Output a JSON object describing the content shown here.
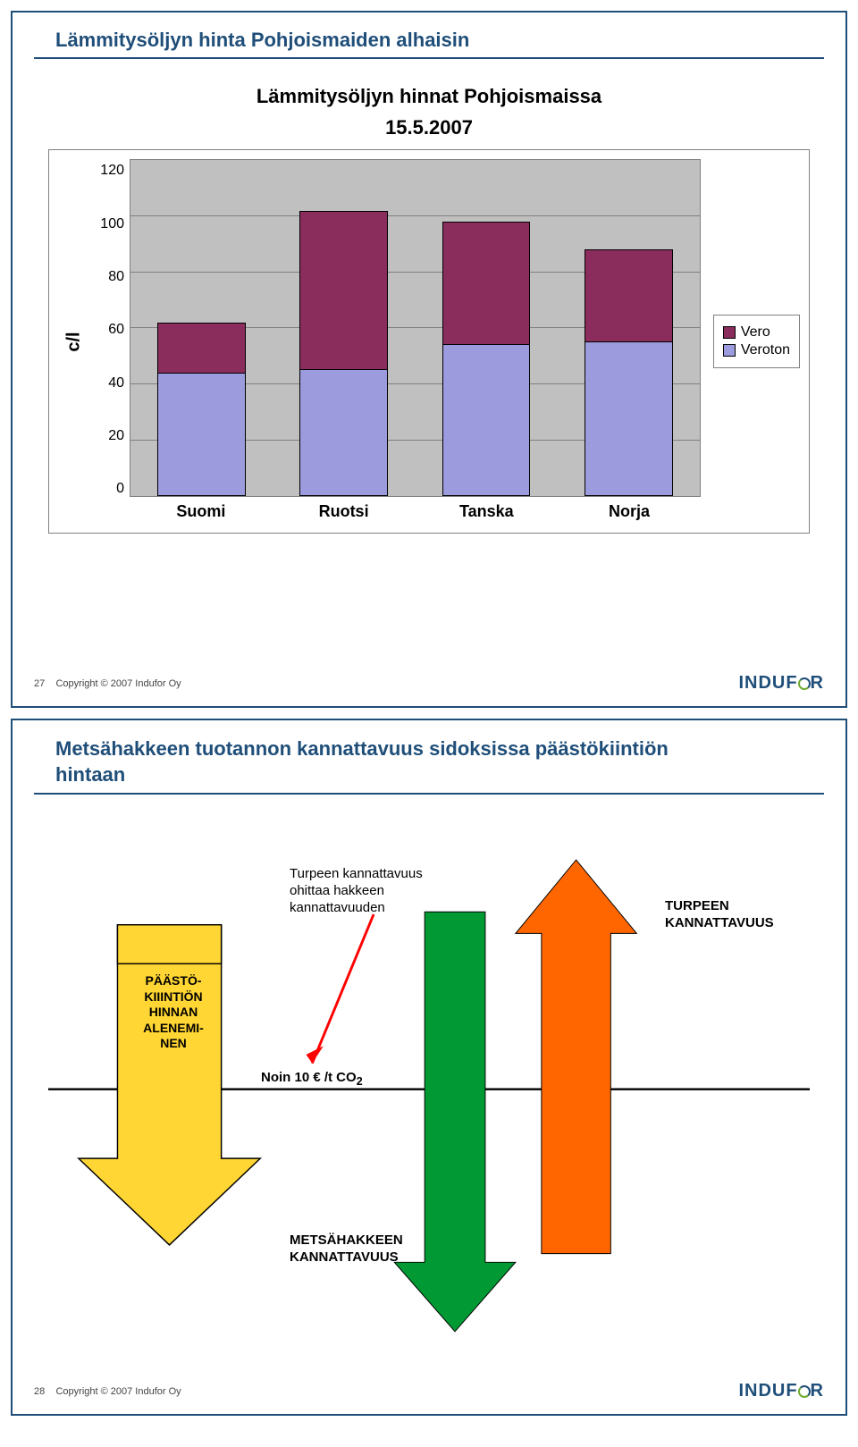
{
  "slide1": {
    "title": "Lämmitysöljyn hinta Pohjoismaiden alhaisin",
    "page_number": "27",
    "copyright": "Copyright © 2007 Indufor Oy",
    "logo_text_a": "INDUF",
    "logo_text_b": "R",
    "chart": {
      "type": "stacked-bar",
      "title_line1": "Lämmitysöljyn hinnat Pohjoismaissa",
      "title_line2": "15.5.2007",
      "ylabel": "c/l",
      "ymax": 120,
      "yticks": [
        "120",
        "100",
        "80",
        "60",
        "40",
        "20",
        "0"
      ],
      "categories": [
        "Suomi",
        "Ruotsi",
        "Tanska",
        "Norja"
      ],
      "series": [
        {
          "name": "Vero",
          "color": "#8b2d5c"
        },
        {
          "name": "Veroton",
          "color": "#9b9bdd"
        }
      ],
      "values_veroton": [
        44,
        45,
        54,
        55
      ],
      "values_vero": [
        18,
        57,
        44,
        33
      ],
      "background_color": "#c0c0c0",
      "grid_color": "#808080",
      "bar_border": "#000000"
    }
  },
  "slide2": {
    "title_line1": "Metsähakkeen tuotannon kannattavuus sidoksissa päästökiintiön",
    "title_line2": "hintaan",
    "page_number": "28",
    "copyright": "Copyright © 2007 Indufor Oy",
    "logo_text_a": "INDUF",
    "logo_text_b": "R",
    "diagram": {
      "type": "infographic",
      "background_color": "#ffffff",
      "baseline_color": "#000000",
      "annotations": {
        "turpeen_text_l1": "Turpeen kannattavuus",
        "turpeen_text_l2": "ohittaa hakkeen",
        "turpeen_text_l3": "kannattavuuden",
        "paasto_l1": "PÄÄSTÖ-",
        "paasto_l2": "KIIINTIÖN",
        "paasto_l3": "HINNAN",
        "paasto_l4": "ALENEMI-",
        "paasto_l5": "NEN",
        "noin": "Noin 10 € /t CO",
        "noin_sub": "2",
        "turpeen_kann_l1": "TURPEEN",
        "turpeen_kann_l2": "KANNATTAVUUS",
        "metsah_l1": "METSÄHAKKEEN",
        "metsah_l2": "KANNATTAVUUS"
      },
      "shapes": {
        "yellow_arrow_fill": "#ffd633",
        "yellow_arrow_stroke": "#000000",
        "red_arrow_fill": "#ff0000",
        "green_arrow_fill": "#009933",
        "orange_arrow_fill": "#ff6600"
      }
    }
  }
}
